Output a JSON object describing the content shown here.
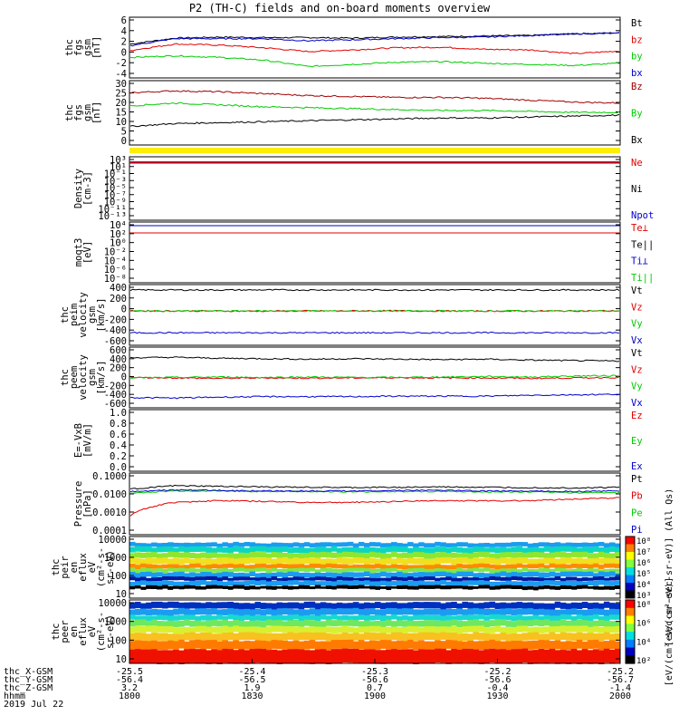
{
  "title": "P2 (TH-C) fields and on-board moments overview",
  "chart_data": [
    {
      "id": "fgs",
      "type": "line",
      "ylabel": [
        "thc",
        "fgs",
        "gsm",
        "[nT]"
      ],
      "yticks": [
        "6",
        "4",
        "2",
        "0",
        "-2",
        "-4"
      ],
      "ylim": [
        -4,
        6.5
      ],
      "series": [
        {
          "name": "Bt",
          "color": "#000000",
          "values": [
            2.0,
            3.1,
            3.3,
            3.2,
            3.2,
            3.1,
            3.3,
            3.4,
            3.5,
            3.6,
            3.9,
            4.1
          ]
        },
        {
          "name": "bz",
          "color": "#e00000",
          "values": [
            0.8,
            2.0,
            1.8,
            1.3,
            0.6,
            0.9,
            1.3,
            1.4,
            1.0,
            0.9,
            0.2,
            0.7
          ]
        },
        {
          "name": "by",
          "color": "#00cc00",
          "values": [
            -0.5,
            -0.2,
            -0.5,
            -1.0,
            -2.2,
            -1.8,
            -1.4,
            -1.3,
            -1.6,
            -1.8,
            -2.0,
            -1.6
          ]
        },
        {
          "name": "bx",
          "color": "#0000cc",
          "values": [
            1.7,
            3.0,
            3.0,
            3.0,
            2.6,
            2.8,
            3.0,
            3.2,
            3.3,
            3.6,
            3.9,
            4.0
          ]
        }
      ]
    },
    {
      "id": "fgs-gse",
      "type": "line",
      "ylabel": [
        "thc",
        "fgs",
        "gsm",
        "[nT]"
      ],
      "yticks": [
        "30",
        "25",
        "20",
        "15",
        "10",
        "5",
        "0"
      ],
      "ylim": [
        -2,
        30
      ],
      "series": [
        {
          "name": "Bz",
          "color": "#a00000",
          "values": [
            25,
            26,
            25.5,
            24.5,
            23.5,
            23.0,
            22.5,
            22.5,
            22.0,
            21.0,
            20.0,
            19.5
          ]
        },
        {
          "name": "By",
          "color": "#00cc00",
          "values": [
            18,
            19.5,
            18.5,
            17.5,
            17.0,
            16.5,
            16.0,
            15.5,
            15.5,
            15.0,
            14.5,
            14.5
          ]
        },
        {
          "name": "Bx",
          "color": "#000000",
          "values": [
            7,
            8.5,
            9.0,
            9.5,
            10.0,
            10.5,
            11.0,
            11.5,
            11.5,
            12.0,
            12.5,
            13.0
          ]
        }
      ]
    },
    {
      "id": "density",
      "type": "line",
      "ylabel": [
        "Density",
        "[cm-3]"
      ],
      "yticks": [
        "10³",
        "10¹",
        "10⁻¹",
        "10⁻³",
        "10⁻⁵",
        "10⁻⁷",
        "10⁻⁹",
        "10⁻¹¹",
        "10⁻¹³"
      ],
      "series": [
        {
          "name": "Ne",
          "color": "#e00000"
        },
        {
          "name": "Ni",
          "color": "#000000"
        },
        {
          "name": "Npot",
          "color": "#0000cc"
        }
      ]
    },
    {
      "id": "temperature",
      "type": "line",
      "ylabel": [
        "moqt3",
        "[eV]"
      ],
      "yticks": [
        "10⁴",
        "10²",
        "10⁰",
        "10⁻²",
        "10⁻⁴",
        "10⁻⁶",
        "10⁻⁸"
      ],
      "series": [
        {
          "name": "Te⊥",
          "color": "#e00000"
        },
        {
          "name": "Te||",
          "color": "#000000"
        },
        {
          "name": "Ti⊥",
          "color": "#0000cc"
        },
        {
          "name": "Ti||",
          "color": "#00cc00"
        }
      ]
    },
    {
      "id": "peim-velocity",
      "type": "line",
      "ylabel": [
        "thc",
        "peim",
        "velocity",
        "gsm",
        "[km/s]"
      ],
      "yticks": [
        "400",
        "200",
        "0",
        "-200",
        "-400",
        "-600"
      ],
      "ylim": [
        -600,
        450
      ],
      "series": [
        {
          "name": "Vt",
          "color": "#000000",
          "values": [
            400,
            400,
            400,
            400,
            400
          ]
        },
        {
          "name": "Vz",
          "color": "#e00000",
          "values": [
            10,
            5,
            10,
            5,
            10
          ]
        },
        {
          "name": "Vy",
          "color": "#00cc00",
          "values": [
            5,
            8,
            6,
            8,
            5
          ]
        },
        {
          "name": "Vx",
          "color": "#0000cc",
          "values": [
            -400,
            -400,
            -400,
            -400,
            -400
          ]
        }
      ]
    },
    {
      "id": "peem-velocity",
      "type": "line",
      "ylabel": [
        "thc",
        "peem",
        "velocity",
        "gsm",
        "[km/s]"
      ],
      "yticks": [
        "600",
        "400",
        "200",
        "0",
        "-200",
        "-400",
        "-600"
      ],
      "ylim": [
        -600,
        600
      ],
      "series": [
        {
          "name": "Vt",
          "color": "#000000",
          "values": [
            430,
            440,
            420,
            410,
            400,
            410,
            400,
            390,
            400,
            380,
            370,
            360
          ]
        },
        {
          "name": "Vz",
          "color": "#e00000",
          "values": [
            10,
            0,
            -10,
            0,
            -5,
            0,
            5,
            0,
            0,
            -10,
            0,
            10
          ]
        },
        {
          "name": "Vy",
          "color": "#00cc00",
          "values": [
            0,
            10,
            20,
            10,
            20,
            10,
            10,
            20,
            30,
            20,
            40,
            50
          ]
        },
        {
          "name": "Vx",
          "color": "#0000cc",
          "values": [
            -420,
            -430,
            -410,
            -400,
            -400,
            -400,
            -390,
            -390,
            -390,
            -370,
            -360,
            -350
          ]
        }
      ]
    },
    {
      "id": "efield",
      "type": "line",
      "ylabel": [
        "E=-VxB",
        "[mV/m]"
      ],
      "yticks": [
        "1.0",
        "0.8",
        "0.6",
        "0.4",
        "0.2",
        "0.0"
      ],
      "ylim": [
        0,
        1
      ],
      "series": [
        {
          "name": "Ez",
          "color": "#e00000"
        },
        {
          "name": "Ey",
          "color": "#00cc00"
        },
        {
          "name": "Ex",
          "color": "#0000cc"
        }
      ]
    },
    {
      "id": "pressure",
      "type": "line",
      "ylabel": [
        "Pressure",
        "[nPa]"
      ],
      "yticks": [
        "0.1000",
        "0.0100",
        "0.0010",
        "0.0001"
      ],
      "ylim": [
        0.0001,
        0.1
      ],
      "yscale": "log",
      "series": [
        {
          "name": "Pt",
          "color": "#000000",
          "values": [
            0.02,
            0.03,
            0.028,
            0.026,
            0.025,
            0.024,
            0.025,
            0.026,
            0.025,
            0.024,
            0.023,
            0.025
          ]
        },
        {
          "name": "Pb",
          "color": "#e00000",
          "values": [
            0.0008,
            0.004,
            0.005,
            0.0045,
            0.004,
            0.004,
            0.0045,
            0.005,
            0.0048,
            0.005,
            0.006,
            0.007
          ]
        },
        {
          "name": "Pe",
          "color": "#00cc00",
          "values": [
            0.012,
            0.016,
            0.016,
            0.015,
            0.015,
            0.014,
            0.015,
            0.015,
            0.014,
            0.014,
            0.013,
            0.013
          ]
        },
        {
          "name": "Pi",
          "color": "#0000cc",
          "values": [
            0.015,
            0.018,
            0.017,
            0.016,
            0.016,
            0.016,
            0.017,
            0.017,
            0.016,
            0.016,
            0.015,
            0.016
          ]
        }
      ]
    },
    {
      "id": "peir-spec",
      "type": "heatmap",
      "ylabel": [
        "thc",
        "peir",
        "en",
        "eflux",
        "eV",
        "(cm²-s-",
        "sr-eV)"
      ],
      "yticks": [
        "10000",
        "1000",
        "100",
        "10"
      ],
      "colorbar_ticks": [
        "10⁸",
        "10⁷",
        "10⁶",
        "10⁵",
        "10⁴",
        "10³"
      ],
      "colorbar_label": "[eV/(cm²-sec-sr-eV)] (All Qs)"
    },
    {
      "id": "peer-spec",
      "type": "heatmap",
      "ylabel": [
        "thc",
        "peer",
        "en",
        "eflux",
        "eV",
        "(cm²-s-",
        "sr-eV)"
      ],
      "yticks": [
        "10000",
        "1000",
        "100",
        "10"
      ],
      "colorbar_ticks": [
        "10⁸",
        "10⁶",
        "10⁴",
        "10²"
      ],
      "colorbar_label": "[eV/(cm²-sec-sr-eV)]"
    }
  ],
  "xaxis": {
    "rows": [
      {
        "label": "thc_X-GSM",
        "values": [
          "-25.5",
          "-25.4",
          "-25.3",
          "-25.2",
          "-25.2"
        ]
      },
      {
        "label": "thc_Y-GSM",
        "values": [
          "-56.4",
          "-56.5",
          "-56.6",
          "-56.6",
          "-56.7"
        ]
      },
      {
        "label": "thc_Z-GSM",
        "values": [
          "3.2",
          "1.9",
          "0.7",
          "-0.4",
          "-1.4"
        ]
      },
      {
        "label": "hhmm",
        "values": [
          "1800",
          "1830",
          "1900",
          "1930",
          "2000"
        ]
      }
    ],
    "date": "2019 Jul 22"
  }
}
